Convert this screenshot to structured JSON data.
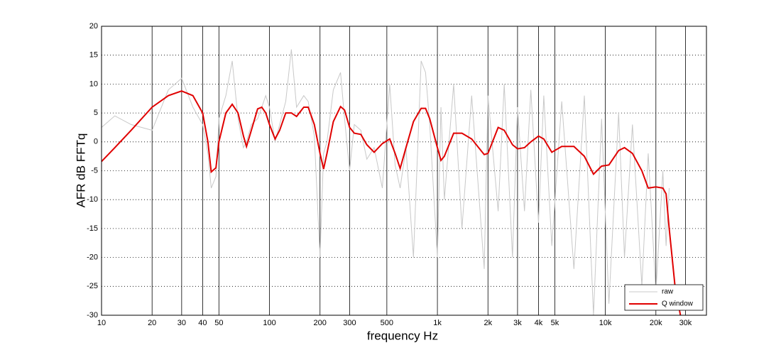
{
  "chart_data": {
    "type": "line",
    "xlabel": "frequency   Hz",
    "ylabel": "AFR dB   FFTq",
    "x": [
      10,
      12,
      15,
      20,
      25,
      30,
      35,
      40,
      43,
      45,
      48,
      50,
      55,
      60,
      65,
      70,
      73,
      78,
      85,
      90,
      95,
      100,
      108,
      115,
      125,
      135,
      145,
      160,
      170,
      185,
      200,
      210,
      220,
      240,
      265,
      280,
      300,
      320,
      350,
      380,
      420,
      470,
      520,
      560,
      600,
      650,
      720,
      800,
      850,
      900,
      1000,
      1050,
      1100,
      1250,
      1400,
      1600,
      1900,
      2000,
      2300,
      2500,
      2800,
      3000,
      3300,
      3600,
      4000,
      4300,
      4800,
      5500,
      6500,
      7500,
      8500,
      9500,
      10500,
      12000,
      13000,
      14500,
      16500,
      18000,
      20000,
      22000,
      23000,
      24000,
      26000,
      28000
    ],
    "series": [
      {
        "name": "raw",
        "color": "#c8c8c8",
        "values": [
          2.5,
          4.5,
          3,
          2,
          9,
          11,
          6,
          3,
          -2,
          -8,
          -6,
          4,
          8,
          14,
          4,
          -1,
          0,
          3,
          4,
          6,
          8,
          6,
          0,
          3,
          7,
          16,
          6,
          8,
          7,
          1,
          -20,
          -2,
          0,
          9,
          12,
          4,
          -5,
          3,
          2,
          -3,
          -1,
          -8,
          10,
          -4,
          -8,
          -1,
          -20,
          14,
          12,
          3,
          -20,
          6,
          -10,
          10,
          -15,
          8,
          -22,
          8,
          -12,
          10,
          -20,
          6,
          -12,
          9,
          -14,
          8,
          -18,
          7,
          -22,
          8,
          -30,
          4,
          -28,
          5,
          -20,
          3,
          -25,
          -2,
          -26,
          -5,
          -18,
          -8,
          null,
          null
        ]
      },
      {
        "name": "Q window",
        "color": "#e00000",
        "values": [
          -3.4,
          -1,
          2,
          6,
          8,
          8.8,
          8,
          5,
          0,
          -5.2,
          -4.5,
          0,
          5,
          6.5,
          5,
          1,
          -0.8,
          2,
          5.7,
          6,
          5,
          3,
          0.5,
          2,
          5,
          5,
          4.4,
          6,
          6,
          3,
          -2,
          -4.7,
          -2,
          3.5,
          6.1,
          5.5,
          2.5,
          1.5,
          1.3,
          -0.5,
          -1.8,
          -0.3,
          0.5,
          -2,
          -4.6,
          -1,
          3.5,
          5.8,
          5.8,
          4,
          -1,
          -3.2,
          -2.5,
          1.5,
          1.5,
          0.5,
          -2.2,
          -2,
          2.5,
          2,
          -0.5,
          -1.2,
          -1,
          0,
          1,
          0.5,
          -1.8,
          -0.8,
          -0.8,
          -2.5,
          -5.6,
          -4.2,
          -4,
          -1.5,
          -1,
          -2,
          -5,
          -8,
          -7.8,
          -8,
          -9,
          -15,
          -25,
          -30
        ]
      }
    ],
    "xlim": [
      10,
      40000
    ],
    "ylim": [
      -30,
      20
    ],
    "log_x": true,
    "grid": true,
    "legend": "lower right",
    "xticks": [
      10,
      20,
      30,
      40,
      50,
      100,
      200,
      300,
      500,
      {
        "value": 1000,
        "label": "1k"
      },
      {
        "value": 2000,
        "label": "2k"
      },
      {
        "value": 3000,
        "label": "3k"
      },
      {
        "value": 4000,
        "label": "4k"
      },
      {
        "value": 5000,
        "label": "5k"
      },
      {
        "value": 10000,
        "label": "10k"
      },
      {
        "value": 20000,
        "label": "20k"
      },
      {
        "value": 30000,
        "label": "30k"
      }
    ],
    "yticks": [
      -30,
      -25,
      -20,
      -15,
      -10,
      -5,
      0,
      5,
      10,
      15,
      20
    ]
  }
}
